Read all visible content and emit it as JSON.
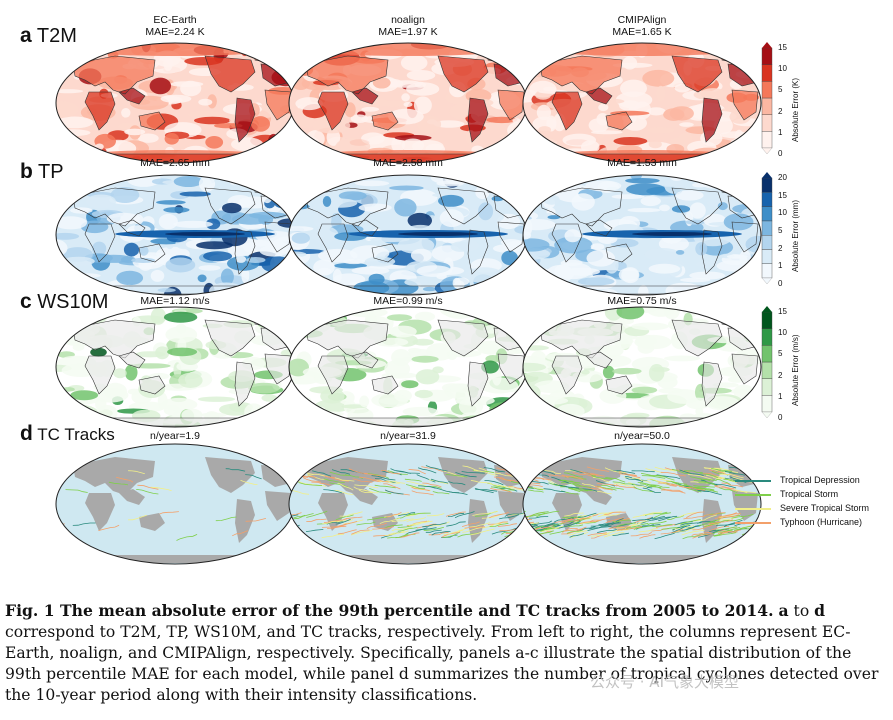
{
  "rows": [
    {
      "letter": "a",
      "name": "T2M",
      "titles": [
        "EC-Earth\nMAE=2.24 K",
        "noalign\nMAE=1.97 K",
        "CMIPAlign\nMAE=1.65 K"
      ],
      "cbar": {
        "label": "Absolute Error (K)",
        "ticks": [
          "15",
          "10",
          "5",
          "2",
          "1",
          "0"
        ],
        "colors": [
          "#fff2ee",
          "#fdd9ce",
          "#fbb7a2",
          "#f4785a",
          "#d93420",
          "#a50f15"
        ]
      }
    },
    {
      "letter": "b",
      "name": "TP",
      "titles": [
        "MAE=2.65 mm",
        "MAE=2.58 mm",
        "MAE=1.53 mm"
      ],
      "cbar": {
        "label": "Absolute Error (mm)",
        "ticks": [
          "20",
          "15",
          "10",
          "5",
          "2",
          "1",
          "0"
        ],
        "colors": [
          "#f2f8fd",
          "#d9ebf7",
          "#b3d5ee",
          "#7cb6e0",
          "#3e8ec8",
          "#1763ad",
          "#08306b"
        ]
      }
    },
    {
      "letter": "c",
      "name": "WS10M",
      "titles": [
        "MAE=1.12 m/s",
        "MAE=0.99 m/s",
        "MAE=0.75 m/s"
      ],
      "cbar": {
        "label": "Absolute Error (m/s)",
        "ticks": [
          "15",
          "10",
          "5",
          "2",
          "1",
          "0"
        ],
        "colors": [
          "#f4fbf2",
          "#dcf1d6",
          "#b4e1aa",
          "#72c36d",
          "#2f9846",
          "#00561d"
        ]
      }
    },
    {
      "letter": "d",
      "name": "TC Tracks",
      "titles": [
        "n/year=1.9",
        "n/year=31.9",
        "n/year=50.0"
      ]
    }
  ],
  "legend": [
    {
      "label": "Tropical Depression",
      "color": "#2a8a7e"
    },
    {
      "label": "Tropical Storm",
      "color": "#7fcf4a"
    },
    {
      "label": "Severe Tropical Storm",
      "color": "#f1ef8a"
    },
    {
      "label": "Typhoon (Hurricane)",
      "color": "#f3a06a"
    }
  ],
  "caption": {
    "bold": "Fig. 1 The mean absolute error of the 99th percentile and TC tracks from 2005 to 2014.",
    "p1": "a",
    "t1": " to ",
    "p2": "d",
    "t2": " correspond to T2M, TP, WS10M, and TC tracks, respectively. From left to right, the columns represent EC-Earth, noalign, and CMIPAlign, respectively. Specifically, panels a-c illustrate the spatial distribution of the 99th percentile MAE for each model, while panel d summarizes the number of tropical cyclones detected over the 10-year period along with their intensity classifications."
  },
  "watermark": "公众号 · AI气象大模型"
}
